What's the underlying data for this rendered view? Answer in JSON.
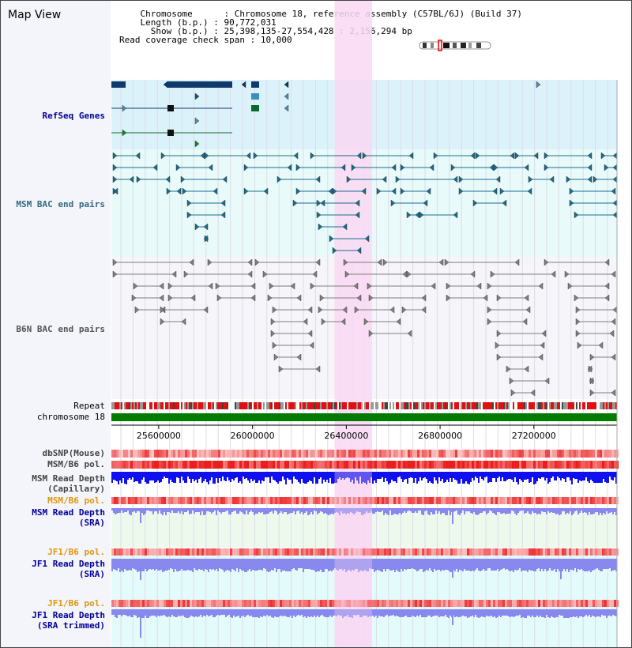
{
  "title": "Map View",
  "info": {
    "chromosome_key": "Chromosome",
    "chromosome_val": "Chromosome 18, reference assembly (C57BL/6J) (Build 37)",
    "length_key": "Length (b.p.)",
    "length_val": "90,772,031",
    "show_key": "Show (b.p.)",
    "show_val": "25,398,135-27,554,428 : 2,156,294 bp",
    "coverage_key": "Read coverage check span",
    "coverage_val": "10,000"
  },
  "tracks": {
    "refseq": "RefSeq Genes",
    "msm_bac": "MSM BAC end pairs",
    "b6n_bac": "B6N BAC end pairs",
    "repeat": "Repeat",
    "chromosome": "chromosome 18",
    "dbsnp": "dbSNP(Mouse)",
    "msm_b6_pol_1": "MSM/B6 pol.",
    "msm_depth_cap_1": "MSM Read Depth",
    "msm_depth_cap_2": "(Capillary)",
    "msm_b6_pol_2": "MSM/B6 pol.",
    "msm_depth_sra_1": "MSM Read Depth",
    "msm_depth_sra_2": "(SRA)",
    "jf1_b6_pol_1": "JF1/B6 pol.",
    "jf1_depth_sra_1": "JF1 Read Depth",
    "jf1_depth_sra_2": "(SRA)",
    "jf1_b6_pol_2": "JF1/B6 pol.",
    "jf1_depth_trim_1": "JF1 Read Depth",
    "jf1_depth_trim_2": "(SRA trimmed)"
  },
  "axis": {
    "ticks": [
      "25600000",
      "26000000",
      "26400000",
      "26800000",
      "27200000"
    ]
  },
  "highlight": {
    "start_bp": 26350000,
    "end_bp": 26510000,
    "color": "#f9d8f3"
  },
  "range": {
    "start_bp": 25398135,
    "end_bp": 27554428
  },
  "colors": {
    "refseq_bg": "#dcf2fa",
    "msm_bg": "#e8fafa",
    "b6n_bg": "#f5f5fa",
    "refseq_gene": "#0e3a6e",
    "msm_pair": "#1b6d8c",
    "b6n_pair": "#808080",
    "chromosome_bar": "#007a00",
    "depth_capillary": "#1010ee",
    "depth_sra": "#8888ee",
    "label_navy": "#000099",
    "label_teal": "#336b80",
    "label_grey": "#444444",
    "label_orange": "#e0960a",
    "label_msm_orange": "#cc7a00"
  }
}
